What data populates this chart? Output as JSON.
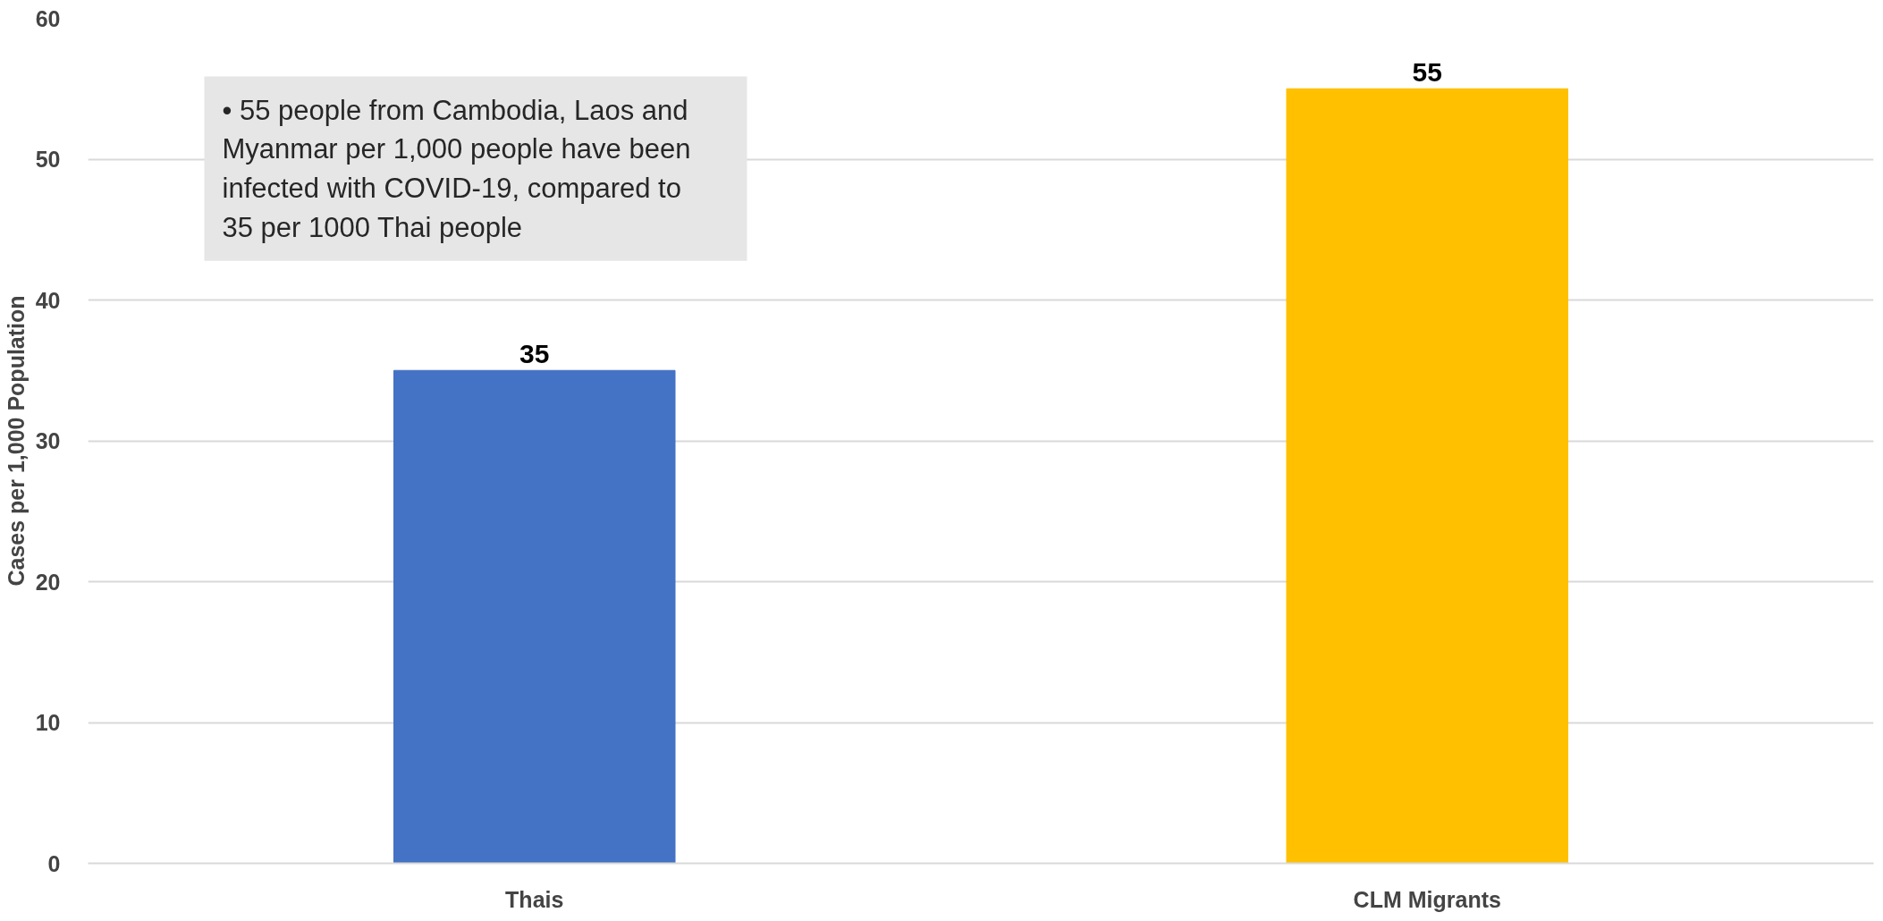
{
  "chart_data": {
    "type": "bar",
    "ylabel": "Cases per 1,000 Population",
    "categories": [
      "Thais",
      "CLM Migrants"
    ],
    "values": [
      35,
      55
    ],
    "colors": [
      "#4472c4",
      "#ffc000"
    ],
    "ylim": [
      0,
      60
    ],
    "yticks": [
      0,
      10,
      20,
      30,
      40,
      50,
      60
    ],
    "grid": "y",
    "data_labels": true,
    "annotations": [
      "• 55 people from Cambodia, Laos and Myanmar per 1,000 people have been infected with COVID-19, compared to 35 per 1000 Thai people"
    ]
  }
}
